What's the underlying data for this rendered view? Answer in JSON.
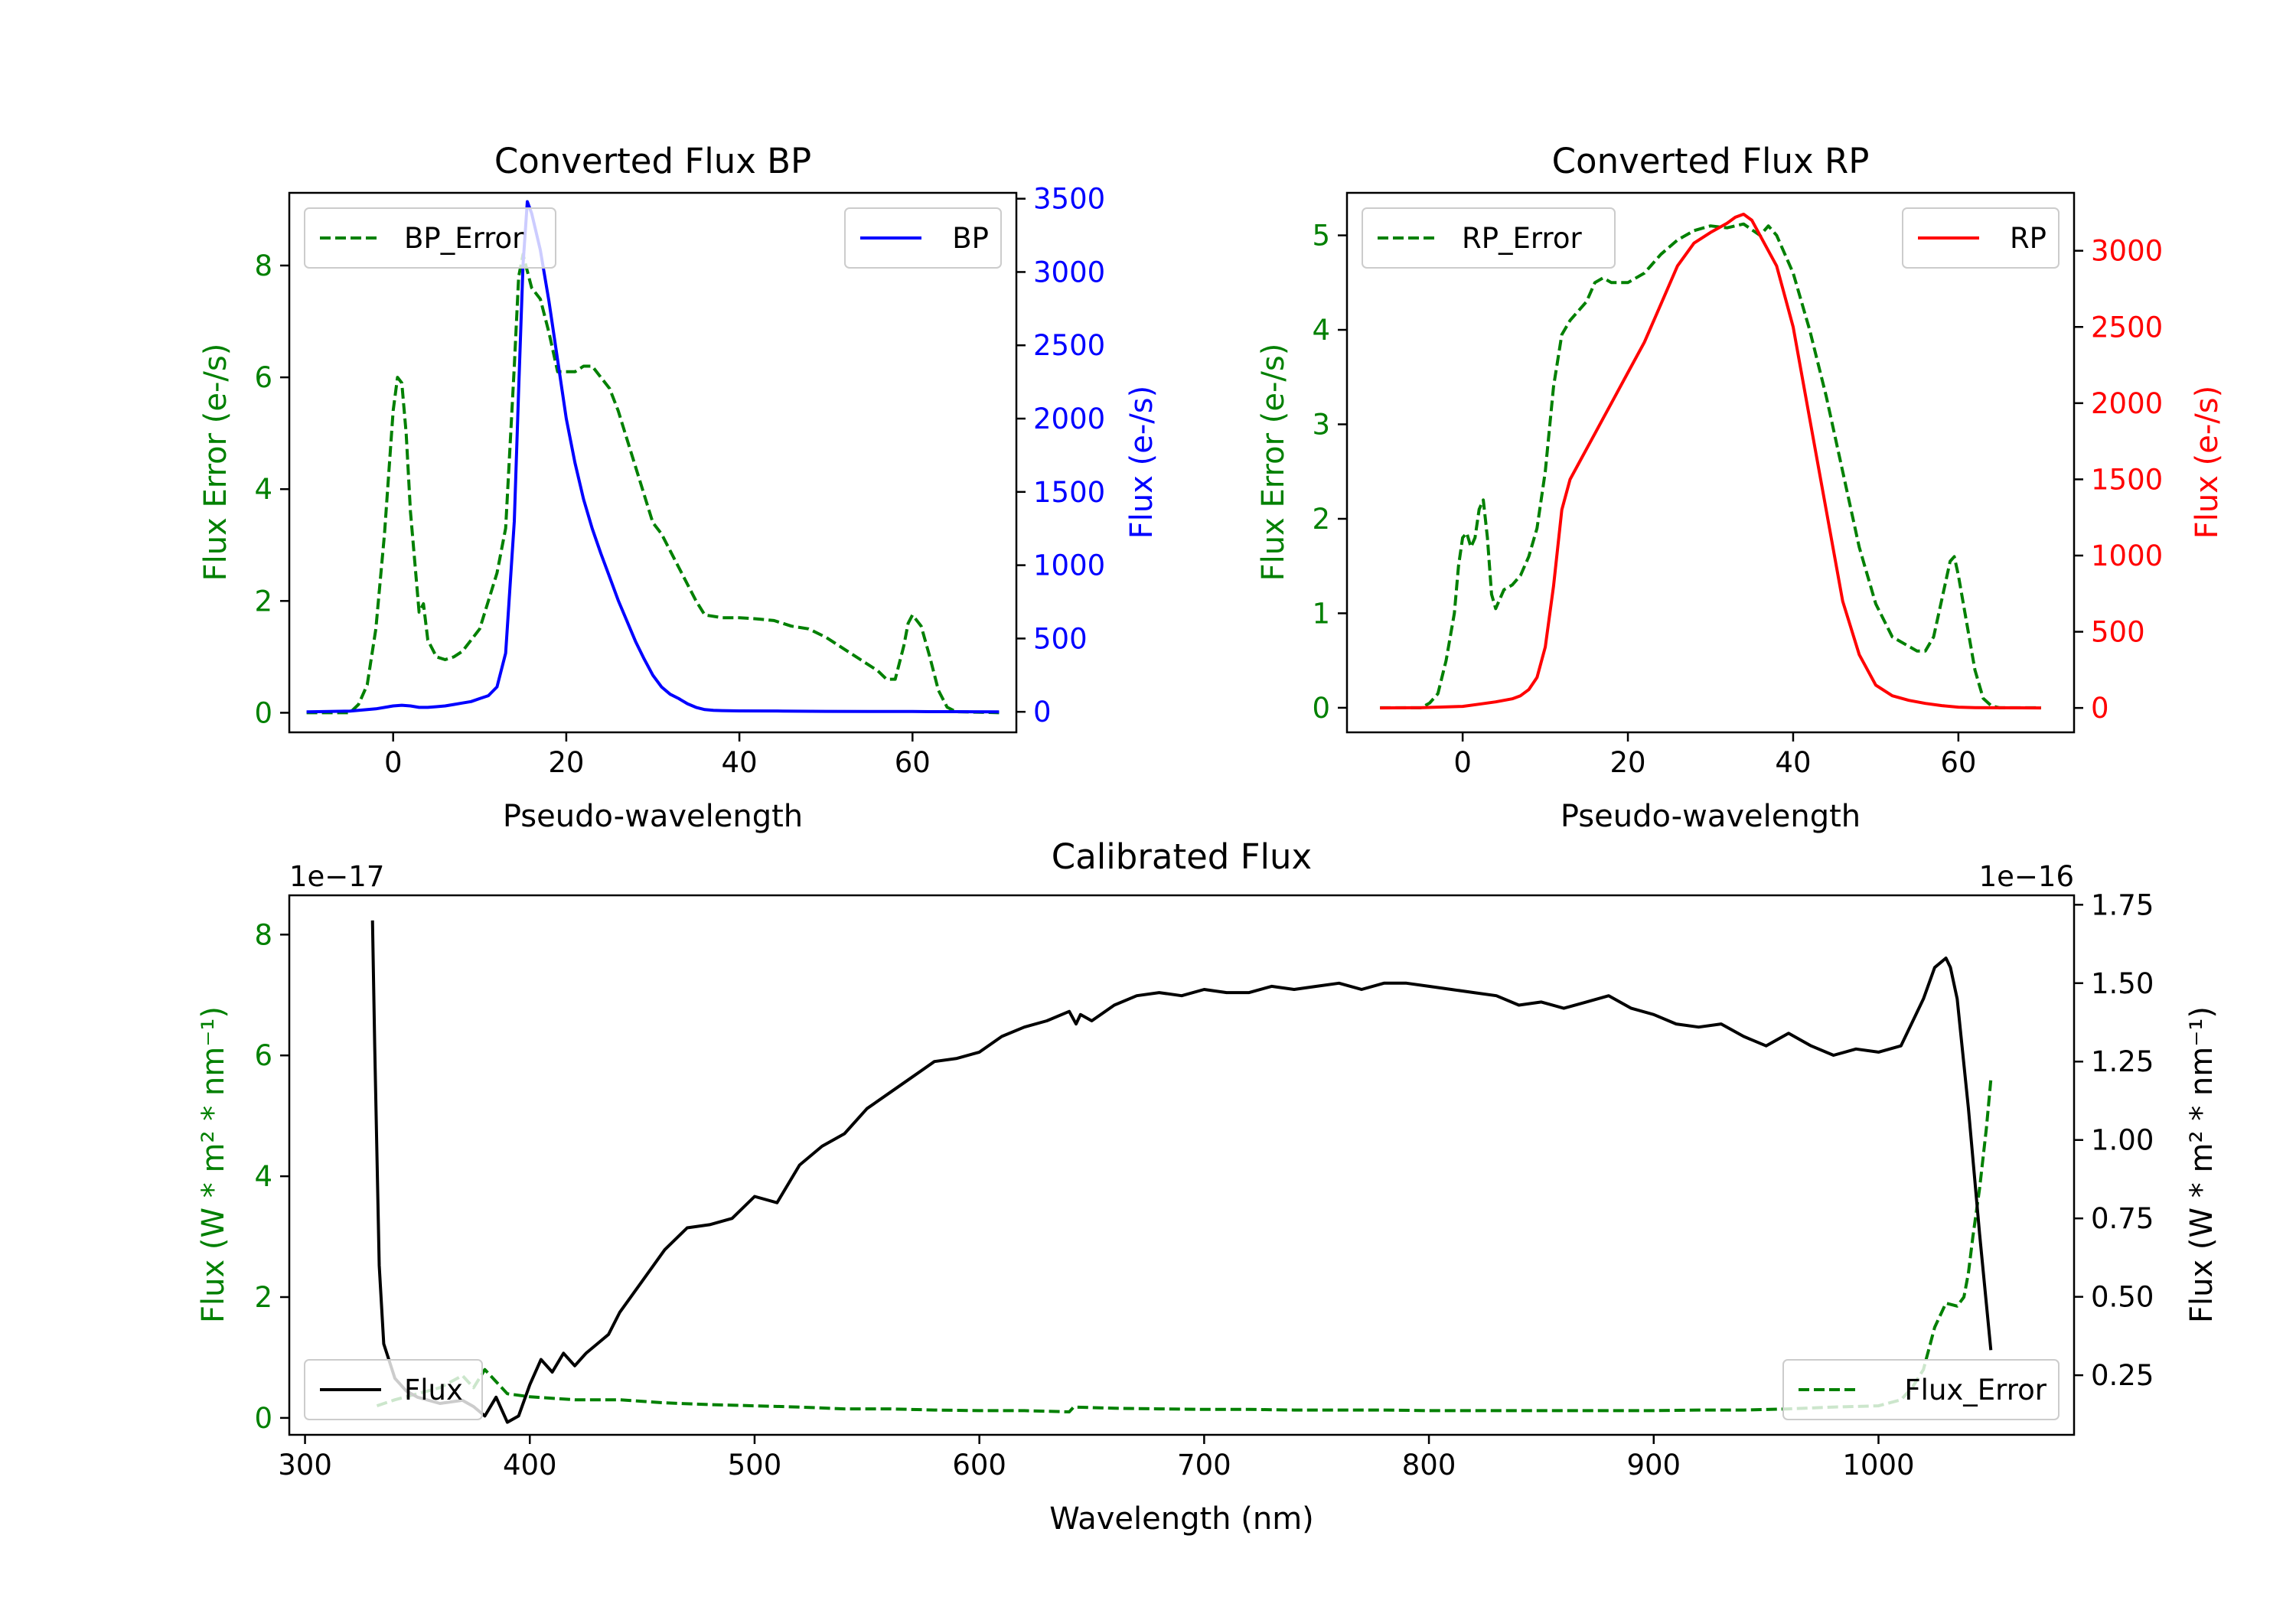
{
  "colors": {
    "green": "#008000",
    "blue": "#0000ff",
    "red": "#ff0000",
    "black": "#000000"
  },
  "chart_data": [
    {
      "type": "line",
      "title": "Converted Flux BP",
      "xlabel": "Pseudo-wavelength",
      "ylabel_left": "Flux Error (e-/s)",
      "ylabel_right": "Flux (e-/s)",
      "xlim": [
        -12,
        72
      ],
      "ylim_left": [
        -0.35,
        9.3
      ],
      "ylim_right": [
        -140,
        3540
      ],
      "xticks": [
        "0",
        "20",
        "40",
        "60"
      ],
      "xtick_values": [
        0,
        20,
        40,
        60
      ],
      "yticks_left": [
        "0",
        "2",
        "4",
        "6",
        "8"
      ],
      "ytick_left_values": [
        0,
        2,
        4,
        6,
        8
      ],
      "yticks_right": [
        "0",
        "500",
        "1000",
        "1500",
        "2000",
        "2500",
        "3000",
        "3500"
      ],
      "ytick_right_values": [
        0,
        500,
        1000,
        1500,
        2000,
        2500,
        3000,
        3500
      ],
      "series": [
        {
          "name": "BP_Error",
          "axis": "left",
          "style": "dashed",
          "color": "#008000",
          "x": [
            -10,
            -5,
            -4,
            -3,
            -2,
            -1,
            0,
            0.5,
            1,
            1.5,
            2,
            3,
            3.5,
            4,
            5,
            6,
            7,
            8,
            9,
            10,
            11,
            12,
            13,
            14,
            14.5,
            15,
            15.5,
            16,
            17,
            18,
            19,
            20,
            21,
            22,
            23,
            24,
            25,
            26,
            27,
            28,
            29,
            30,
            31,
            32,
            33,
            34,
            35,
            36,
            38,
            40,
            42,
            44,
            46,
            48,
            50,
            52,
            54,
            56,
            57,
            58,
            59,
            59.5,
            60,
            61,
            62,
            63,
            64,
            65,
            70
          ],
          "y": [
            0,
            0,
            0.15,
            0.5,
            1.5,
            3.2,
            5.4,
            6.0,
            5.9,
            5.0,
            3.6,
            1.8,
            1.95,
            1.3,
            1.0,
            0.95,
            1.0,
            1.1,
            1.3,
            1.5,
            2.0,
            2.5,
            3.3,
            6.2,
            7.8,
            8.2,
            7.9,
            7.6,
            7.4,
            6.8,
            6.1,
            6.1,
            6.1,
            6.2,
            6.2,
            6.0,
            5.8,
            5.4,
            4.9,
            4.4,
            3.9,
            3.4,
            3.2,
            2.9,
            2.6,
            2.3,
            2.0,
            1.75,
            1.7,
            1.7,
            1.68,
            1.65,
            1.55,
            1.5,
            1.35,
            1.15,
            0.95,
            0.75,
            0.6,
            0.6,
            1.2,
            1.6,
            1.75,
            1.55,
            1.0,
            0.4,
            0.1,
            0.02,
            0
          ]
        },
        {
          "name": "BP",
          "axis": "right",
          "style": "solid",
          "color": "#0000ff",
          "x": [
            -10,
            -5,
            -2,
            0,
            1,
            2,
            3,
            4,
            5,
            6,
            7,
            8,
            9,
            10,
            11,
            12,
            13,
            14,
            14.5,
            15,
            15.5,
            16,
            17,
            18,
            19,
            20,
            21,
            22,
            23,
            24,
            25,
            26,
            27,
            28,
            29,
            30,
            31,
            32,
            33,
            34,
            35,
            36,
            37,
            38,
            40,
            45,
            50,
            55,
            60,
            62,
            65,
            70
          ],
          "y": [
            0,
            5,
            20,
            40,
            45,
            40,
            30,
            30,
            35,
            40,
            50,
            60,
            70,
            90,
            110,
            170,
            400,
            1300,
            2200,
            3050,
            3480,
            3400,
            3150,
            2800,
            2400,
            2000,
            1700,
            1450,
            1250,
            1080,
            920,
            760,
            620,
            480,
            360,
            250,
            170,
            120,
            90,
            55,
            30,
            15,
            10,
            8,
            6,
            5,
            3,
            2,
            2,
            1,
            1,
            0
          ]
        }
      ],
      "legend": [
        {
          "label": "BP_Error",
          "position": "upper-left"
        },
        {
          "label": "BP",
          "position": "upper-right"
        }
      ]
    },
    {
      "type": "line",
      "title": "Converted Flux RP",
      "xlabel": "Pseudo-wavelength",
      "ylabel_left": "Flux Error (e-/s)",
      "ylabel_right": "Flux (e-/s)",
      "xlim": [
        -14,
        74
      ],
      "ylim_left": [
        -0.26,
        5.45
      ],
      "ylim_right": [
        -160,
        3380
      ],
      "xticks": [
        "0",
        "20",
        "40",
        "60"
      ],
      "xtick_values": [
        0,
        20,
        40,
        60
      ],
      "yticks_left": [
        "0",
        "1",
        "2",
        "3",
        "4",
        "5"
      ],
      "ytick_left_values": [
        0,
        1,
        2,
        3,
        4,
        5
      ],
      "yticks_right": [
        "0",
        "500",
        "1000",
        "1500",
        "2000",
        "2500",
        "3000"
      ],
      "ytick_right_values": [
        0,
        500,
        1000,
        1500,
        2000,
        2500,
        3000
      ],
      "series": [
        {
          "name": "RP_Error",
          "axis": "left",
          "style": "dashed",
          "color": "#008000",
          "x": [
            -10,
            -5,
            -4,
            -3,
            -2,
            -1,
            -0.5,
            0,
            0.5,
            1,
            1.5,
            2,
            2.5,
            3,
            3.5,
            4,
            5,
            6,
            7,
            8,
            9,
            10,
            11,
            12,
            13,
            14,
            15,
            16,
            17,
            18,
            20,
            22,
            24,
            26,
            28,
            30,
            32,
            34,
            36,
            37,
            38,
            40,
            42,
            44,
            46,
            48,
            50,
            52,
            54,
            55,
            56,
            57,
            58,
            59,
            59.5,
            60,
            61,
            62,
            63,
            64,
            65,
            70
          ],
          "y": [
            0,
            0,
            0.05,
            0.15,
            0.5,
            1.0,
            1.5,
            1.8,
            1.85,
            1.7,
            1.8,
            2.1,
            2.2,
            1.8,
            1.2,
            1.05,
            1.25,
            1.3,
            1.4,
            1.6,
            1.9,
            2.5,
            3.4,
            3.95,
            4.1,
            4.2,
            4.3,
            4.5,
            4.55,
            4.5,
            4.5,
            4.6,
            4.8,
            4.95,
            5.05,
            5.1,
            5.08,
            5.12,
            5.0,
            5.1,
            5.0,
            4.6,
            4.0,
            3.3,
            2.5,
            1.7,
            1.1,
            0.75,
            0.65,
            0.6,
            0.6,
            0.75,
            1.15,
            1.55,
            1.6,
            1.4,
            0.9,
            0.4,
            0.1,
            0.02,
            0,
            0
          ]
        },
        {
          "name": "RP",
          "axis": "right",
          "style": "solid",
          "color": "#ff0000",
          "x": [
            -10,
            -5,
            0,
            2,
            4,
            6,
            7,
            8,
            9,
            10,
            11,
            12,
            13,
            14,
            15,
            16,
            17,
            18,
            20,
            22,
            24,
            26,
            28,
            30,
            32,
            33,
            34,
            35,
            36,
            37,
            38,
            40,
            42,
            44,
            46,
            48,
            50,
            52,
            54,
            56,
            58,
            60,
            62,
            65,
            70
          ],
          "y": [
            0,
            2,
            10,
            25,
            40,
            60,
            80,
            120,
            200,
            400,
            800,
            1300,
            1500,
            1600,
            1700,
            1800,
            1900,
            2000,
            2200,
            2400,
            2650,
            2900,
            3050,
            3120,
            3180,
            3220,
            3240,
            3200,
            3100,
            3000,
            2900,
            2500,
            1900,
            1300,
            700,
            350,
            150,
            80,
            50,
            30,
            15,
            5,
            2,
            1,
            0
          ]
        }
      ],
      "legend": [
        {
          "label": "RP_Error",
          "position": "upper-left"
        },
        {
          "label": "RP",
          "position": "upper-right"
        }
      ]
    },
    {
      "type": "line",
      "title": "Calibrated Flux",
      "xlabel": "Wavelength (nm)",
      "ylabel_left": "Flux (W * m² * nm⁻¹)",
      "ylabel_right": "Flux (W * m² * nm⁻¹)",
      "offset_left": "1e−17",
      "offset_right": "1e−16",
      "xlim": [
        293,
        1087
      ],
      "ylim_left": [
        -0.28,
        8.65
      ],
      "ylim_right": [
        0.06,
        1.78
      ],
      "xticks": [
        "300",
        "400",
        "500",
        "600",
        "700",
        "800",
        "900",
        "1000"
      ],
      "xtick_values": [
        300,
        400,
        500,
        600,
        700,
        800,
        900,
        1000
      ],
      "yticks_left": [
        "0",
        "2",
        "4",
        "6",
        "8"
      ],
      "ytick_left_values": [
        0,
        2,
        4,
        6,
        8
      ],
      "yticks_right": [
        "0.25",
        "0.50",
        "0.75",
        "1.00",
        "1.25",
        "1.50",
        "1.75"
      ],
      "ytick_right_values": [
        0.25,
        0.5,
        0.75,
        1.0,
        1.25,
        1.5,
        1.75
      ],
      "series": [
        {
          "name": "Flux_Error",
          "axis": "left",
          "style": "dashed",
          "color": "#008000",
          "x": [
            332,
            340,
            350,
            360,
            370,
            375,
            380,
            385,
            390,
            400,
            420,
            440,
            460,
            480,
            500,
            520,
            540,
            560,
            580,
            600,
            620,
            640,
            642,
            660,
            680,
            700,
            720,
            740,
            760,
            780,
            800,
            820,
            840,
            860,
            880,
            900,
            920,
            940,
            960,
            980,
            1000,
            1010,
            1015,
            1020,
            1025,
            1030,
            1035,
            1038,
            1040,
            1042,
            1045,
            1048,
            1050
          ],
          "y": [
            0.2,
            0.3,
            0.4,
            0.5,
            0.7,
            0.5,
            0.8,
            0.6,
            0.4,
            0.35,
            0.3,
            0.3,
            0.25,
            0.22,
            0.2,
            0.18,
            0.15,
            0.15,
            0.13,
            0.12,
            0.12,
            0.1,
            0.18,
            0.16,
            0.15,
            0.14,
            0.14,
            0.13,
            0.13,
            0.13,
            0.12,
            0.12,
            0.12,
            0.12,
            0.12,
            0.12,
            0.13,
            0.13,
            0.15,
            0.18,
            0.2,
            0.3,
            0.5,
            0.8,
            1.5,
            1.9,
            1.85,
            2.0,
            2.4,
            3.0,
            3.8,
            4.8,
            5.6
          ]
        },
        {
          "name": "Flux",
          "axis": "right",
          "style": "solid",
          "color": "#000000",
          "x": [
            330,
            331,
            333,
            335,
            340,
            345,
            350,
            360,
            370,
            375,
            380,
            385,
            390,
            395,
            400,
            405,
            410,
            415,
            420,
            425,
            430,
            435,
            440,
            450,
            460,
            470,
            480,
            490,
            500,
            510,
            520,
            530,
            540,
            550,
            560,
            570,
            580,
            590,
            600,
            610,
            620,
            630,
            640,
            643,
            645,
            650,
            660,
            670,
            680,
            690,
            700,
            710,
            720,
            730,
            740,
            750,
            760,
            770,
            780,
            790,
            800,
            810,
            820,
            830,
            840,
            850,
            860,
            870,
            880,
            890,
            900,
            910,
            920,
            930,
            940,
            950,
            960,
            970,
            980,
            990,
            1000,
            1010,
            1020,
            1025,
            1030,
            1032,
            1035,
            1040,
            1045,
            1050
          ],
          "y": [
            1.7,
            1.3,
            0.6,
            0.35,
            0.24,
            0.2,
            0.18,
            0.16,
            0.17,
            0.15,
            0.12,
            0.18,
            0.1,
            0.12,
            0.22,
            0.3,
            0.26,
            0.32,
            0.28,
            0.32,
            0.35,
            0.38,
            0.45,
            0.55,
            0.65,
            0.72,
            0.73,
            0.75,
            0.82,
            0.8,
            0.92,
            0.98,
            1.02,
            1.1,
            1.15,
            1.2,
            1.25,
            1.26,
            1.28,
            1.33,
            1.36,
            1.38,
            1.41,
            1.37,
            1.4,
            1.38,
            1.43,
            1.46,
            1.47,
            1.46,
            1.48,
            1.47,
            1.47,
            1.49,
            1.48,
            1.49,
            1.5,
            1.48,
            1.5,
            1.5,
            1.49,
            1.48,
            1.47,
            1.46,
            1.43,
            1.44,
            1.42,
            1.44,
            1.46,
            1.42,
            1.4,
            1.37,
            1.36,
            1.37,
            1.33,
            1.3,
            1.34,
            1.3,
            1.27,
            1.29,
            1.28,
            1.3,
            1.45,
            1.55,
            1.58,
            1.55,
            1.45,
            1.1,
            0.7,
            0.33
          ]
        }
      ],
      "legend": [
        {
          "label": "Flux",
          "position": "lower-left"
        },
        {
          "label": "Flux_Error",
          "position": "lower-right"
        }
      ]
    }
  ]
}
